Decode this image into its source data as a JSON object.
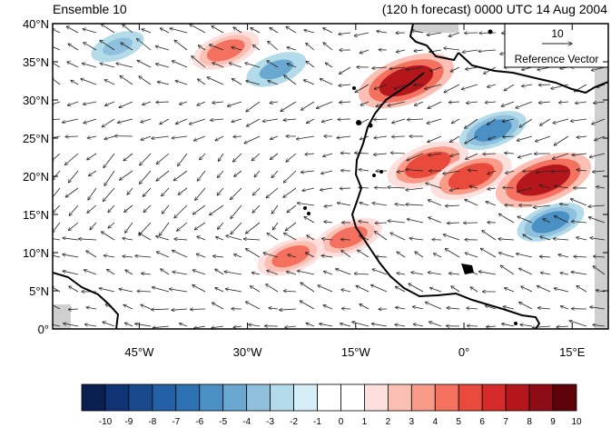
{
  "header": {
    "left_title": "Ensemble 10",
    "right_title": "(120 h forecast) 0000 UTC 14 Aug 2004"
  },
  "reference_vector": {
    "magnitude_label": "10",
    "caption": "Reference Vector"
  },
  "axes": {
    "y_ticks": [
      "0°",
      "5°N",
      "10°N",
      "15°N",
      "20°N",
      "25°N",
      "30°N",
      "35°N",
      "40°N"
    ],
    "x_ticks": [
      "45°W",
      "30°W",
      "15°W",
      "0°",
      "15°E"
    ]
  },
  "colorbar": {
    "labels": [
      "-10",
      "-9",
      "-8",
      "-7",
      "-6",
      "-5",
      "-4",
      "-3",
      "-2",
      "-1",
      "0",
      "1",
      "2",
      "3",
      "4",
      "5",
      "6",
      "7",
      "8",
      "9",
      "10"
    ],
    "colors": [
      "#0a1f4f",
      "#0f3375",
      "#1a4a8e",
      "#2460a6",
      "#2d72b2",
      "#4a90c4",
      "#6aa8d2",
      "#8fc1de",
      "#b3dbe9",
      "#d6eef8",
      "#ffffff",
      "#ffffff",
      "#fde0dd",
      "#fbbfb4",
      "#f89b88",
      "#f4715f",
      "#e94a3c",
      "#d42a2a",
      "#b5161c",
      "#8c0b14",
      "#5e0209"
    ]
  },
  "chart_data": {
    "type": "heatmap",
    "title": "Ensemble 10",
    "subtitle": "(120 h forecast) 0000 UTC 14 Aug 2004",
    "lon_range": [
      -57,
      20
    ],
    "lat_range": [
      0,
      40
    ],
    "color_scale": {
      "min": -10,
      "max": 10,
      "step": 1
    },
    "vector_reference": 10,
    "anomaly_features": [
      {
        "lon": -33,
        "lat": 36.5,
        "value": 5
      },
      {
        "lon": -8,
        "lat": 32.5,
        "value": 9
      },
      {
        "lon": -5,
        "lat": 21.5,
        "value": 7
      },
      {
        "lon": 1,
        "lat": 20,
        "value": 7
      },
      {
        "lon": 11,
        "lat": 19.5,
        "value": 9
      },
      {
        "lon": -16,
        "lat": 12,
        "value": 5
      },
      {
        "lon": -24,
        "lat": 9.5,
        "value": 5
      },
      {
        "lon": -26,
        "lat": 34,
        "value": -4
      },
      {
        "lon": 4,
        "lat": 26,
        "value": -5
      },
      {
        "lon": 12,
        "lat": 14,
        "value": -5
      },
      {
        "lon": -48,
        "lat": 37,
        "value": -3
      }
    ]
  }
}
